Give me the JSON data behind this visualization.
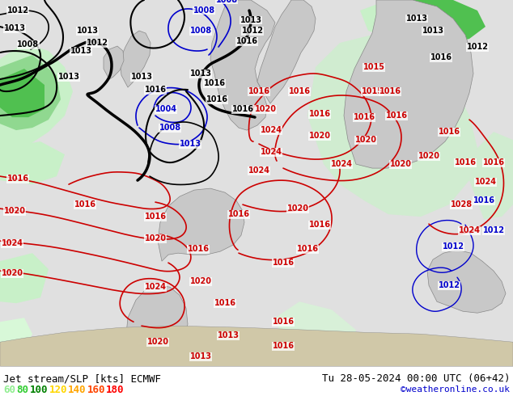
{
  "title_left": "Jet stream/SLP [kts] ECMWF",
  "title_right": "Tu 28-05-2024 00:00 UTC (06+42)",
  "credit": "©weatheronline.co.uk",
  "legend_values": [
    "60",
    "80",
    "100",
    "120",
    "140",
    "160",
    "180"
  ],
  "legend_colors": [
    "#90ee90",
    "#32cd32",
    "#008000",
    "#ffd700",
    "#ffa500",
    "#ff4500",
    "#ff0000"
  ],
  "bg_color": "#f0f0f0",
  "map_bg": "#e8e8e8",
  "figsize": [
    6.34,
    4.9
  ],
  "dpi": 100,
  "credit_color": "#0000cc",
  "bottom_bg": "#ffffff",
  "font_size_title": 9,
  "font_size_legend": 9,
  "font_size_credit": 8
}
